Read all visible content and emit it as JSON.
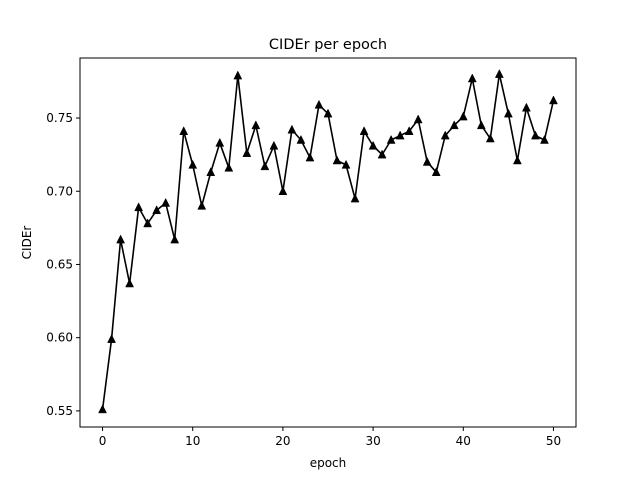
{
  "chart_data": {
    "type": "line",
    "title": "CIDEr per epoch",
    "xlabel": "epoch",
    "ylabel": "CIDEr",
    "xlim": [
      -2.5,
      52.5
    ],
    "ylim": [
      0.539,
      0.791
    ],
    "xticks": [
      0,
      10,
      20,
      30,
      40,
      50
    ],
    "yticks": [
      0.55,
      0.6,
      0.65,
      0.7,
      0.75
    ],
    "xtick_labels": [
      "0",
      "10",
      "20",
      "30",
      "40",
      "50"
    ],
    "ytick_labels": [
      "0.55",
      "0.60",
      "0.65",
      "0.70",
      "0.75"
    ],
    "grid": false,
    "series": [
      {
        "color": "#000000",
        "marker": "triangle-up",
        "x": [
          0,
          1,
          2,
          3,
          4,
          5,
          6,
          7,
          8,
          9,
          10,
          11,
          12,
          13,
          14,
          15,
          16,
          17,
          18,
          19,
          20,
          21,
          22,
          23,
          24,
          25,
          26,
          27,
          28,
          29,
          30,
          31,
          32,
          33,
          34,
          35,
          36,
          37,
          38,
          39,
          40,
          41,
          42,
          43,
          44,
          45,
          46,
          47,
          48,
          49,
          50
        ],
        "y": [
          0.551,
          0.599,
          0.667,
          0.637,
          0.689,
          0.678,
          0.687,
          0.692,
          0.667,
          0.741,
          0.718,
          0.69,
          0.713,
          0.733,
          0.716,
          0.779,
          0.726,
          0.745,
          0.717,
          0.731,
          0.7,
          0.742,
          0.735,
          0.723,
          0.759,
          0.753,
          0.721,
          0.718,
          0.695,
          0.741,
          0.731,
          0.725,
          0.735,
          0.738,
          0.741,
          0.749,
          0.72,
          0.713,
          0.738,
          0.745,
          0.751,
          0.777,
          0.745,
          0.736,
          0.78,
          0.753,
          0.721,
          0.757,
          0.738,
          0.735,
          0.762
        ]
      }
    ]
  }
}
